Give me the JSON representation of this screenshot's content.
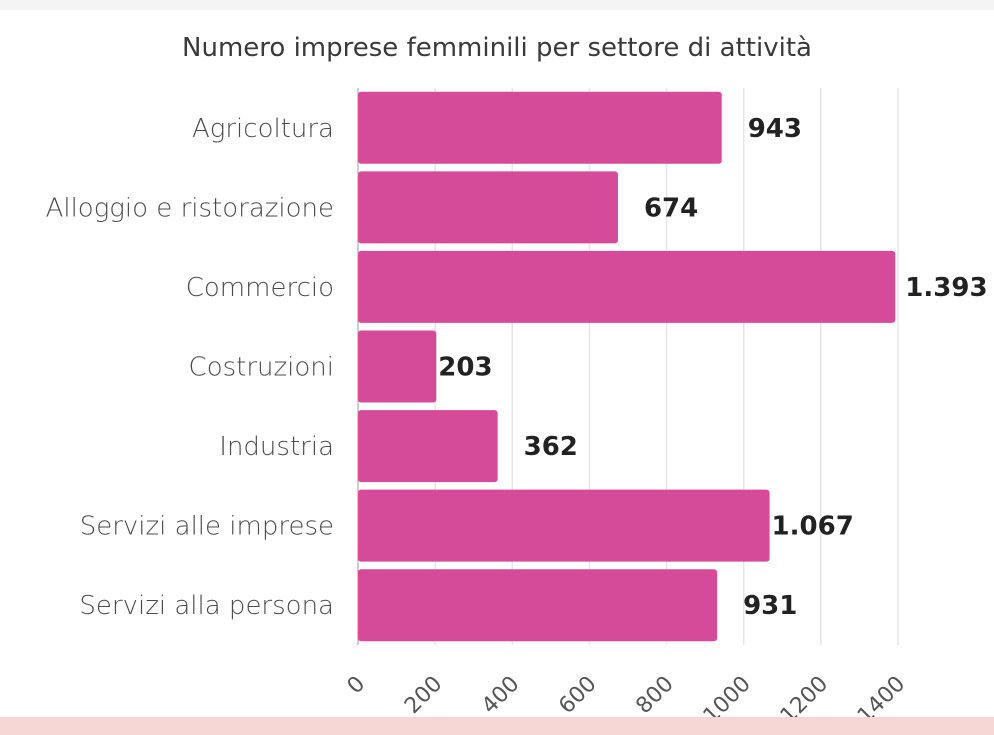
{
  "colors": {
    "bar": "#d54b99",
    "grid": "#e6e6e6",
    "axis": "#bdbdbd",
    "bottom_strip": "#f7d6d6"
  },
  "chart_data": {
    "type": "bar",
    "orientation": "horizontal",
    "title": "Numero imprese femminili per settore di attività",
    "categories": [
      "Agricoltura",
      "Alloggio e ristorazione",
      "Commercio",
      "Costruzioni",
      "Industria",
      "Servizi alle imprese",
      "Servizi alla persona"
    ],
    "values": [
      943,
      674,
      1393,
      203,
      362,
      1067,
      931
    ],
    "value_labels": [
      "943",
      "674",
      "1.393",
      "203",
      "362",
      "1.067",
      "931"
    ],
    "xlim": [
      0,
      1400
    ],
    "xticks": [
      "0",
      "200",
      "400",
      "600",
      "800",
      "1000",
      "1200",
      "1400"
    ],
    "xlabel": "",
    "ylabel": "",
    "grid": true,
    "legend": "none"
  }
}
